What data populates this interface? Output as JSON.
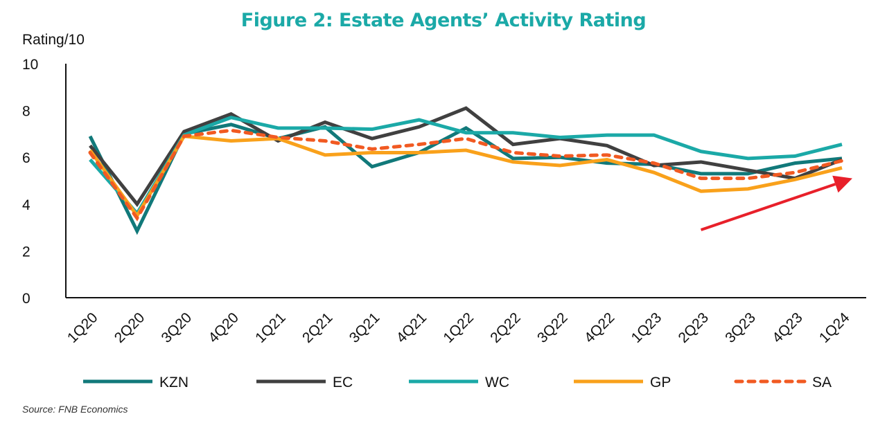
{
  "chart_data": {
    "type": "line",
    "title": "Figure 2: Estate Agents’ Activity Rating",
    "ylabel": "Rating/10",
    "xlabel": "",
    "ylim": [
      0,
      10
    ],
    "yticks": [
      "0",
      "2",
      "4",
      "6",
      "8",
      "10"
    ],
    "categories": [
      "1Q20",
      "2Q20",
      "3Q20",
      "4Q20",
      "1Q21",
      "2Q21",
      "3Q21",
      "4Q21",
      "1Q22",
      "2Q22",
      "3Q22",
      "4Q22",
      "1Q23",
      "2Q23",
      "3Q23",
      "4Q23",
      "1Q24"
    ],
    "series": [
      {
        "name": "KZN",
        "color": "#11797a",
        "dashed": false,
        "values": [
          6.9,
          2.85,
          7.0,
          7.4,
          6.8,
          7.3,
          5.6,
          6.2,
          7.25,
          5.95,
          6.0,
          5.75,
          5.7,
          5.3,
          5.3,
          5.75,
          5.95
        ]
      },
      {
        "name": "EC",
        "color": "#404040",
        "dashed": false,
        "values": [
          6.5,
          4.0,
          7.1,
          7.85,
          6.7,
          7.5,
          6.8,
          7.3,
          8.1,
          6.55,
          6.8,
          6.5,
          5.65,
          5.8,
          5.45,
          5.1,
          5.9
        ]
      },
      {
        "name": "WC",
        "color": "#1ba9a7",
        "dashed": false,
        "values": [
          5.9,
          3.6,
          6.95,
          7.7,
          7.25,
          7.25,
          7.2,
          7.6,
          7.05,
          7.05,
          6.85,
          6.95,
          6.95,
          6.25,
          5.95,
          6.05,
          6.55
        ]
      },
      {
        "name": "GP",
        "color": "#f9a11b",
        "dashed": false,
        "values": [
          6.3,
          3.5,
          6.9,
          6.7,
          6.8,
          6.1,
          6.2,
          6.2,
          6.3,
          5.8,
          5.65,
          5.9,
          5.35,
          4.55,
          4.65,
          5.05,
          5.55
        ]
      },
      {
        "name": "SA",
        "color": "#f15a22",
        "dashed": true,
        "values": [
          6.2,
          3.4,
          6.9,
          7.15,
          6.85,
          6.7,
          6.35,
          6.55,
          6.8,
          6.2,
          6.05,
          6.1,
          5.75,
          5.1,
          5.1,
          5.35,
          5.85
        ]
      }
    ],
    "annotations": [
      {
        "type": "arrow",
        "color": "#e8202a",
        "from": [
          "2Q23",
          2.9
        ],
        "to": [
          "1Q24",
          5.1
        ]
      }
    ],
    "legend_position": "bottom",
    "grid": false
  },
  "source": "Source: FNB Economics"
}
